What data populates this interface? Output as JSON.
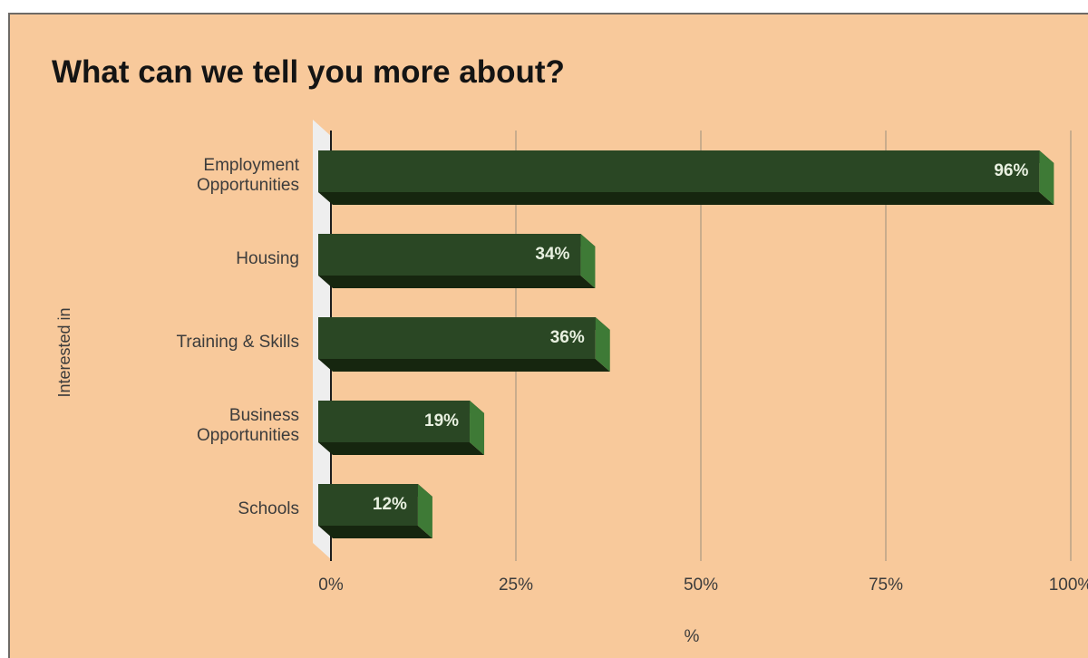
{
  "chart_data": {
    "type": "bar",
    "orientation": "horizontal",
    "title": "What can we tell you more about?",
    "xlabel": "%",
    "ylabel": "Interested in",
    "categories": [
      [
        "Employment",
        "Opportunities"
      ],
      [
        "Housing"
      ],
      [
        "Training & Skills"
      ],
      [
        "Business",
        "Opportunities"
      ],
      [
        "Schools"
      ]
    ],
    "values": [
      96,
      34,
      36,
      19,
      12
    ],
    "data_labels": [
      "96%",
      "34%",
      "36%",
      "19%",
      "12%"
    ],
    "xlim": [
      0,
      100
    ],
    "x_ticks": [
      0,
      25,
      50,
      75,
      100
    ],
    "x_tick_labels": [
      "0%",
      "25%",
      "50%",
      "75%",
      "100%"
    ],
    "grid": "vertical",
    "legend": "none",
    "style": "3d",
    "colors": {
      "background": "#f8c99b",
      "bar_front": "#2a4724",
      "bar_top": "#16260f",
      "bar_side": "#3e7a36",
      "bar_label": "#e8f0e0",
      "gridline": "#b9a288",
      "axis_text": "#3c3c3c",
      "title": "#141414"
    }
  }
}
